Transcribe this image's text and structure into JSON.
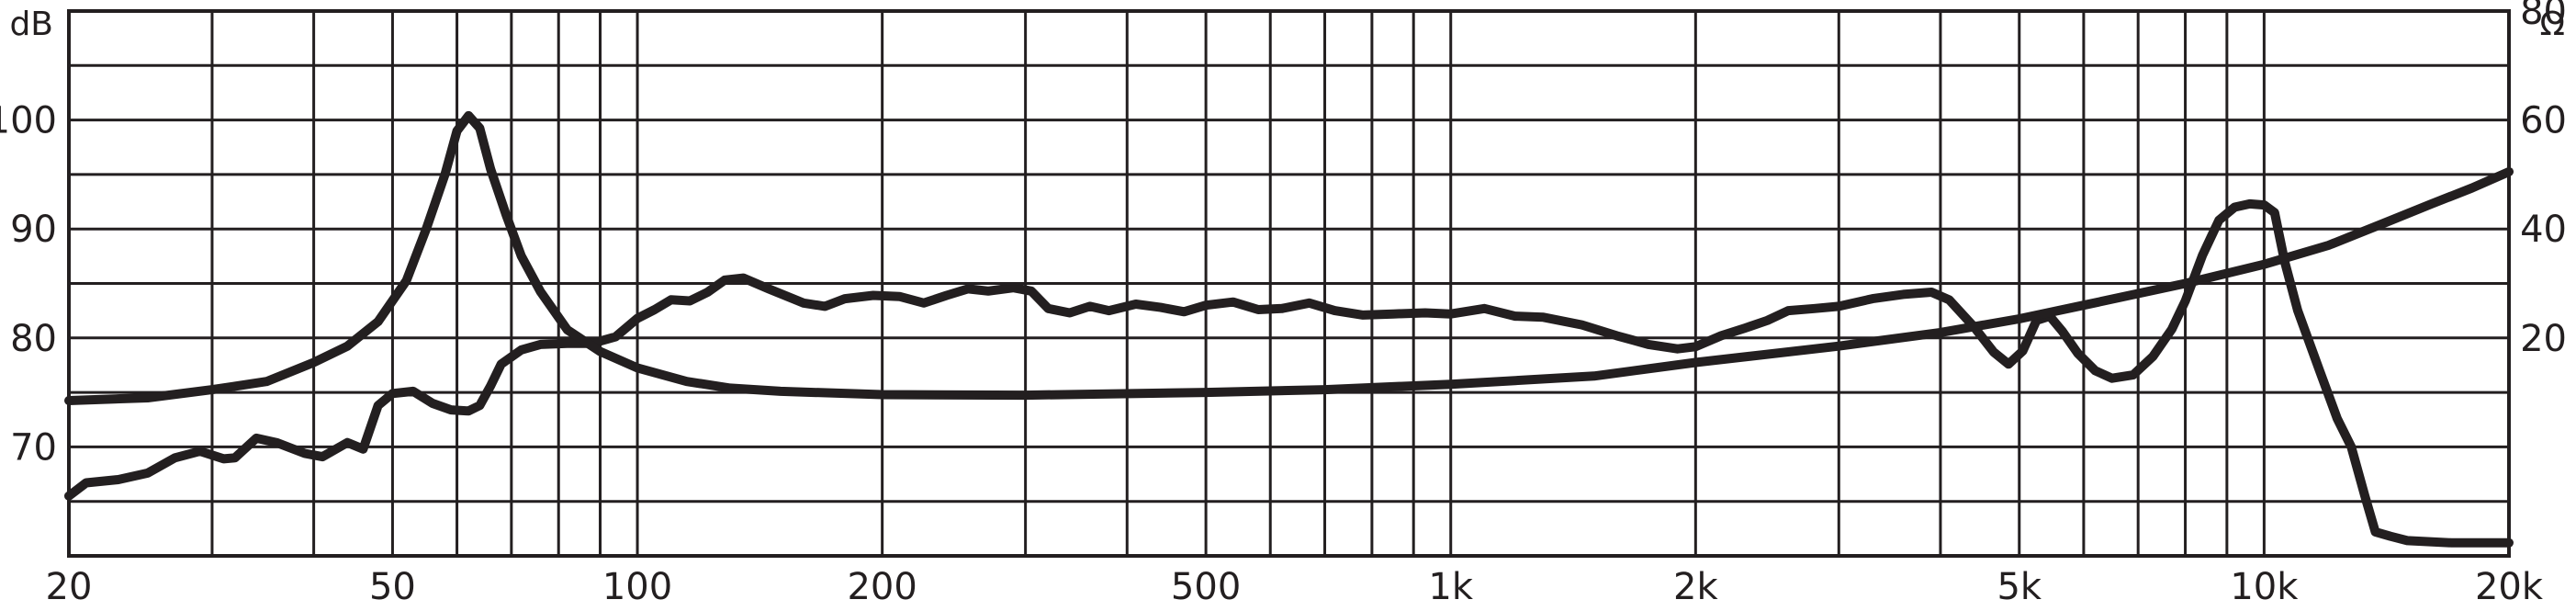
{
  "chart_data": {
    "type": "line",
    "x_scale": "log",
    "xlim": [
      20,
      20000
    ],
    "x_ticks": [
      20,
      50,
      100,
      200,
      500,
      1000,
      2000,
      5000,
      10000,
      20000
    ],
    "x_tick_labels": [
      "20",
      "50",
      "100",
      "200",
      "500",
      "1k",
      "2k",
      "5k",
      "10k",
      "20k"
    ],
    "y_left": {
      "label": "dB",
      "lim": [
        60,
        110
      ],
      "ticks": [
        70,
        80,
        90,
        100
      ],
      "tick_labels": [
        "70",
        "80",
        "90",
        "100"
      ]
    },
    "y_right": {
      "label": "Ω",
      "lim": [
        -20,
        80
      ],
      "ticks": [
        20,
        40,
        60,
        80
      ],
      "tick_labels": [
        "20",
        "40",
        "60",
        "80"
      ]
    },
    "grid": true,
    "colors": {
      "line": "#231f20",
      "grid": "#231f20",
      "background": "#ffffff"
    },
    "series": [
      {
        "axis": "left",
        "points": [
          [
            20,
            65.5
          ],
          [
            21,
            66.7
          ],
          [
            23,
            67.0
          ],
          [
            25,
            67.6
          ],
          [
            27,
            69.0
          ],
          [
            29,
            69.6
          ],
          [
            31,
            68.9
          ],
          [
            32,
            69.0
          ],
          [
            34,
            70.8
          ],
          [
            36,
            70.4
          ],
          [
            39,
            69.4
          ],
          [
            41,
            69.1
          ],
          [
            44,
            70.4
          ],
          [
            46,
            69.8
          ],
          [
            48,
            73.8
          ],
          [
            50,
            74.9
          ],
          [
            53,
            75.1
          ],
          [
            56,
            74.0
          ],
          [
            59,
            73.4
          ],
          [
            62,
            73.3
          ],
          [
            64,
            73.8
          ],
          [
            66,
            75.6
          ],
          [
            68,
            77.6
          ],
          [
            72,
            78.9
          ],
          [
            76,
            79.4
          ],
          [
            82,
            79.5
          ],
          [
            88,
            79.5
          ],
          [
            94,
            80.1
          ],
          [
            100,
            81.8
          ],
          [
            105,
            82.6
          ],
          [
            110,
            83.5
          ],
          [
            116,
            83.4
          ],
          [
            122,
            84.2
          ],
          [
            128,
            85.3
          ],
          [
            135,
            85.5
          ],
          [
            145,
            84.5
          ],
          [
            160,
            83.2
          ],
          [
            170,
            82.9
          ],
          [
            180,
            83.6
          ],
          [
            195,
            83.9
          ],
          [
            210,
            83.8
          ],
          [
            225,
            83.2
          ],
          [
            240,
            83.9
          ],
          [
            255,
            84.5
          ],
          [
            270,
            84.3
          ],
          [
            290,
            84.6
          ],
          [
            305,
            84.3
          ],
          [
            320,
            82.7
          ],
          [
            340,
            82.3
          ],
          [
            360,
            82.9
          ],
          [
            380,
            82.5
          ],
          [
            410,
            83.1
          ],
          [
            440,
            82.8
          ],
          [
            470,
            82.4
          ],
          [
            500,
            83.0
          ],
          [
            540,
            83.3
          ],
          [
            580,
            82.6
          ],
          [
            620,
            82.7
          ],
          [
            670,
            83.2
          ],
          [
            720,
            82.5
          ],
          [
            780,
            82.1
          ],
          [
            850,
            82.2
          ],
          [
            930,
            82.3
          ],
          [
            1000,
            82.2
          ],
          [
            1100,
            82.7
          ],
          [
            1200,
            82.0
          ],
          [
            1300,
            81.9
          ],
          [
            1450,
            81.2
          ],
          [
            1600,
            80.2
          ],
          [
            1750,
            79.4
          ],
          [
            1900,
            79.0
          ],
          [
            2000,
            79.2
          ],
          [
            2150,
            80.2
          ],
          [
            2300,
            80.9
          ],
          [
            2450,
            81.6
          ],
          [
            2600,
            82.5
          ],
          [
            2800,
            82.7
          ],
          [
            3000,
            82.9
          ],
          [
            3300,
            83.6
          ],
          [
            3600,
            84.0
          ],
          [
            3900,
            84.2
          ],
          [
            4100,
            83.5
          ],
          [
            4400,
            81.0
          ],
          [
            4650,
            78.7
          ],
          [
            4850,
            77.6
          ],
          [
            5050,
            78.8
          ],
          [
            5250,
            81.6
          ],
          [
            5450,
            82.0
          ],
          [
            5650,
            80.6
          ],
          [
            5900,
            78.6
          ],
          [
            6200,
            77.0
          ],
          [
            6500,
            76.3
          ],
          [
            6900,
            76.6
          ],
          [
            7300,
            78.3
          ],
          [
            7700,
            80.8
          ],
          [
            8000,
            83.4
          ],
          [
            8400,
            87.6
          ],
          [
            8800,
            90.8
          ],
          [
            9200,
            92.0
          ],
          [
            9600,
            92.3
          ],
          [
            10000,
            92.2
          ],
          [
            10300,
            91.5
          ],
          [
            10600,
            87.0
          ],
          [
            11000,
            82.5
          ],
          [
            11700,
            77.0
          ],
          [
            12300,
            72.6
          ],
          [
            12800,
            70.0
          ],
          [
            13300,
            65.5
          ],
          [
            13700,
            62.2
          ],
          [
            14300,
            61.8
          ],
          [
            15000,
            61.4
          ],
          [
            17000,
            61.2
          ],
          [
            20000,
            61.2
          ]
        ]
      },
      {
        "axis": "right",
        "points": [
          [
            20,
            8.5
          ],
          [
            25,
            9.0
          ],
          [
            30,
            10.5
          ],
          [
            35,
            12.0
          ],
          [
            40,
            15.5
          ],
          [
            44,
            18.5
          ],
          [
            48,
            23.0
          ],
          [
            52,
            30.5
          ],
          [
            55,
            40.0
          ],
          [
            58,
            50.0
          ],
          [
            60,
            58.0
          ],
          [
            62,
            60.8
          ],
          [
            64,
            58.5
          ],
          [
            66,
            51.0
          ],
          [
            69,
            42.5
          ],
          [
            72,
            35.0
          ],
          [
            76,
            28.5
          ],
          [
            82,
            21.5
          ],
          [
            90,
            17.5
          ],
          [
            100,
            14.5
          ],
          [
            115,
            12.0
          ],
          [
            130,
            10.8
          ],
          [
            150,
            10.2
          ],
          [
            200,
            9.6
          ],
          [
            300,
            9.5
          ],
          [
            500,
            10.0
          ],
          [
            700,
            10.5
          ],
          [
            1000,
            11.5
          ],
          [
            1500,
            13.0
          ],
          [
            2000,
            15.5
          ],
          [
            3000,
            18.5
          ],
          [
            4000,
            21.0
          ],
          [
            5000,
            23.5
          ],
          [
            6000,
            26.0
          ],
          [
            8000,
            30.0
          ],
          [
            10000,
            33.5
          ],
          [
            12000,
            37.0
          ],
          [
            14000,
            41.0
          ],
          [
            16000,
            44.5
          ],
          [
            18000,
            47.5
          ],
          [
            20000,
            50.5
          ]
        ]
      }
    ]
  }
}
